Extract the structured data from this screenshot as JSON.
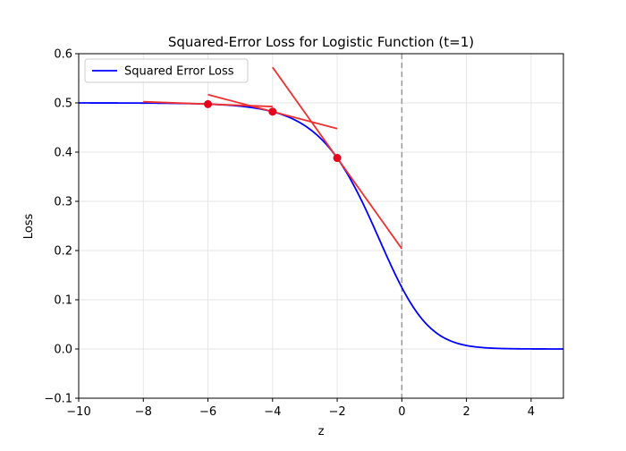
{
  "chart_data": {
    "type": "line",
    "title": "Squared-Error Loss for Logistic Function (t=1)",
    "xlabel": "z",
    "ylabel": "Loss",
    "xlim": [
      -10,
      5
    ],
    "ylim": [
      -0.1,
      0.6
    ],
    "xticks": [
      -10,
      -8,
      -6,
      -4,
      -2,
      0,
      2,
      4
    ],
    "xtick_labels": [
      "−10",
      "−8",
      "−6",
      "−4",
      "−2",
      "0",
      "2",
      "4"
    ],
    "yticks": [
      -0.1,
      0.0,
      0.1,
      0.2,
      0.3,
      0.4,
      0.5,
      0.6
    ],
    "ytick_labels": [
      "−0.1",
      "0.0",
      "0.1",
      "0.2",
      "0.3",
      "0.4",
      "0.5",
      "0.6"
    ],
    "grid": true,
    "legend_position": "top-left",
    "series": [
      {
        "name": "Squared Error Loss",
        "color": "#0000ff",
        "function": "0.5 * (1 / (1 + exp(-z)) - 1)^2",
        "x_range": [
          -10,
          5
        ]
      }
    ],
    "points": [
      {
        "x": -6,
        "y": 0.4975
      },
      {
        "x": -4,
        "y": 0.4823
      },
      {
        "x": -2,
        "y": 0.3881
      }
    ],
    "tangent_lines": [
      {
        "x0": -6,
        "y0": 0.4975,
        "slope": -0.00245,
        "x_range": [
          -8,
          -4
        ]
      },
      {
        "x0": -4,
        "y0": 0.4823,
        "slope": -0.01727,
        "x_range": [
          -6,
          -2
        ]
      },
      {
        "x0": -2,
        "y0": 0.3881,
        "slope": -0.09216,
        "x_range": [
          -4,
          0
        ]
      }
    ],
    "point_color": "#e8001c",
    "tangent_color": "#f03030",
    "vline": {
      "x": 0,
      "style": "dashed",
      "color": "#999999"
    }
  }
}
